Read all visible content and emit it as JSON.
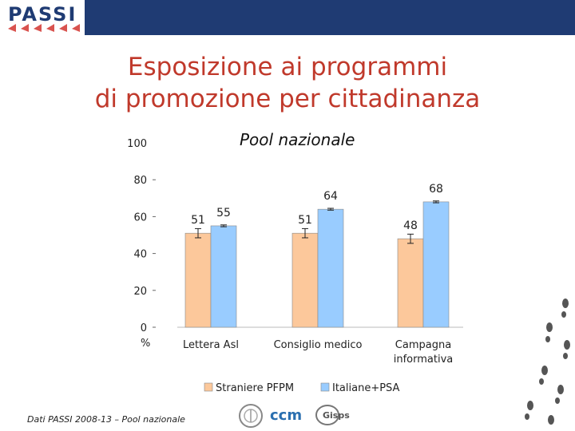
{
  "header": {
    "logo_text": "PASSI"
  },
  "title_lines": [
    "Esposizione ai programmi",
    "di promozione per cittadinanza"
  ],
  "subtitle": "Pool nazionale",
  "footer": {
    "source": "Dati PASSI 2008-13 – Pool nazionale"
  },
  "partners": [
    "ccm",
    "Gisps"
  ],
  "colors": {
    "title": "#c0392b",
    "header": "#1f3b73",
    "series1": "#fcc89b",
    "series2": "#99ccff"
  },
  "chart_data": {
    "type": "bar",
    "title": "Pool nazionale",
    "ylabel": "%",
    "xlabel": "",
    "ylim": [
      0,
      100
    ],
    "yticks": [
      0,
      20,
      40,
      60,
      80,
      100
    ],
    "categories": [
      "Lettera Asl",
      "Consiglio medico",
      "Campagna informativa"
    ],
    "series": [
      {
        "name": "Straniere PFPM",
        "values": [
          51,
          51,
          48
        ]
      },
      {
        "name": "Italiane+PSA",
        "values": [
          55,
          64,
          68
        ]
      }
    ],
    "legend": "bottom",
    "error_bars": true
  }
}
